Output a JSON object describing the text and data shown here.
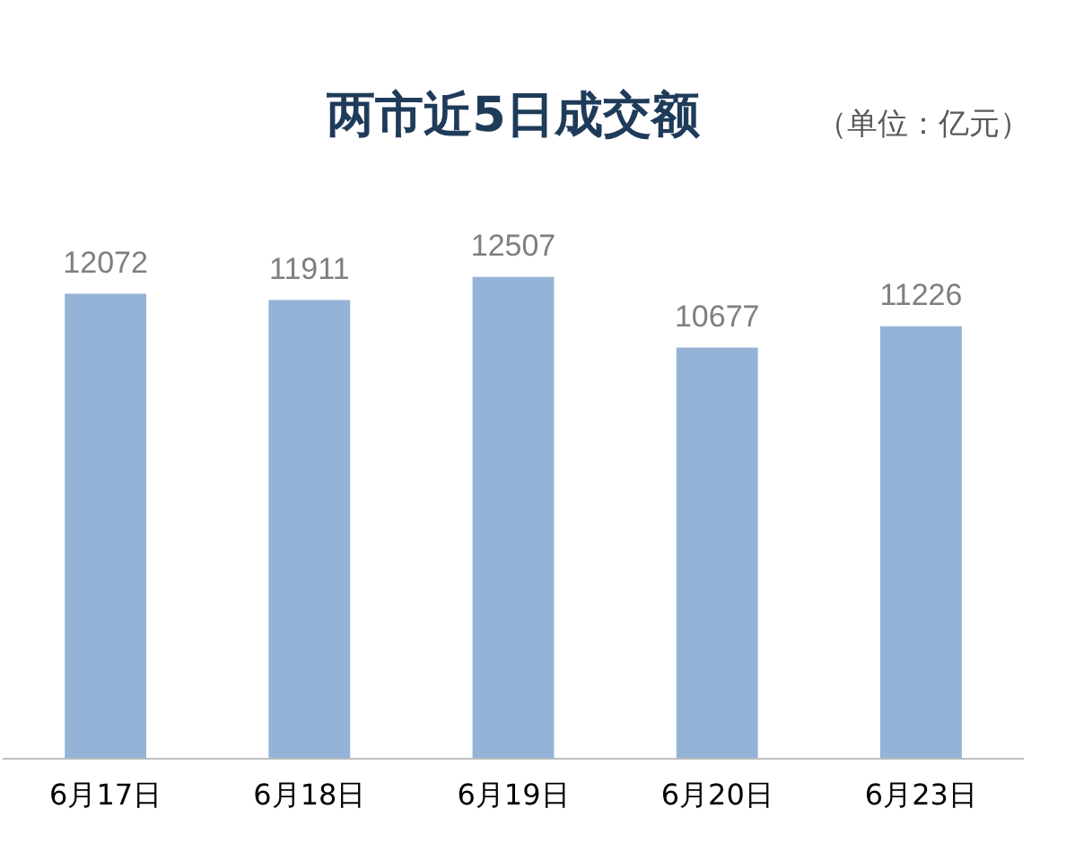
{
  "chart_data": {
    "type": "bar",
    "title": "两市近5日成交额",
    "annotations": [
      "（单位：亿元）"
    ],
    "categories": [
      "6月17日",
      "6月18日",
      "6月19日",
      "6月20日",
      "6月23日"
    ],
    "values": [
      12072,
      11911,
      12507,
      10677,
      11226
    ],
    "color": "#95b3d7",
    "data_labels": true,
    "grid": false,
    "legend": false
  }
}
